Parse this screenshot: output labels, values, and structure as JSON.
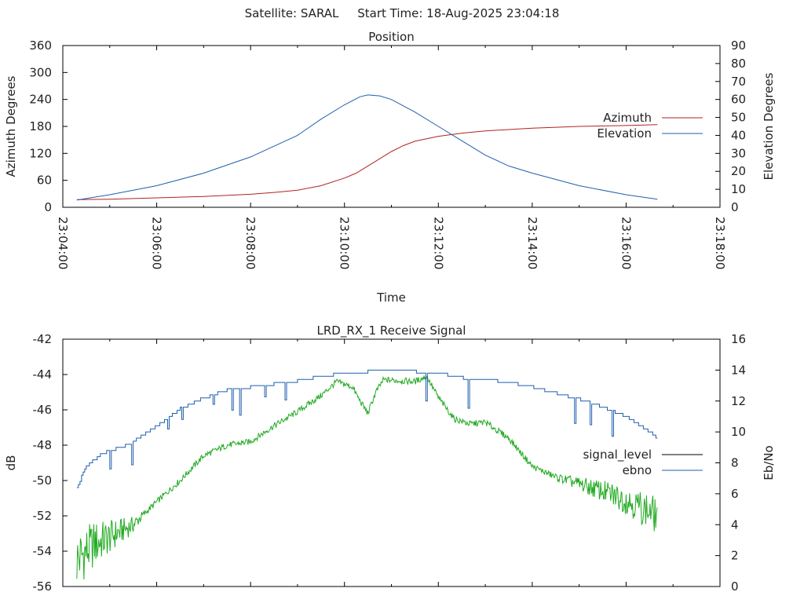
{
  "window": {
    "satellite_label": "Satellite: SARAL",
    "start_time_label": "Start Time: 18-Aug-2025 23:04:18"
  },
  "chart_data": [
    {
      "type": "line",
      "title": "Position",
      "xlabel": "Time",
      "ylabel": "Azimuth Degrees",
      "y2label": "Elevation Degrees",
      "xlim": [
        "23:04:00",
        "23:18:00"
      ],
      "x_ticks": [
        "23:04:00",
        "23:06:00",
        "23:08:00",
        "23:10:00",
        "23:12:00",
        "23:14:00",
        "23:16:00",
        "23:18:00"
      ],
      "ylim": [
        0,
        360
      ],
      "y_ticks": [
        "0",
        "60",
        "120",
        "180",
        "240",
        "300",
        "360"
      ],
      "y2lim": [
        0,
        90
      ],
      "y2_ticks": [
        "0",
        "10",
        "20",
        "30",
        "40",
        "50",
        "60",
        "70",
        "80",
        "90"
      ],
      "legend_position": "right",
      "series": [
        {
          "name": "Azimuth",
          "axis": "left",
          "color": "#b22222",
          "points": [
            [
              "23:04:18",
              17
            ],
            [
              "23:05:00",
              18
            ],
            [
              "23:06:00",
              21
            ],
            [
              "23:07:00",
              24
            ],
            [
              "23:08:00",
              29
            ],
            [
              "23:08:30",
              33
            ],
            [
              "23:09:00",
              38
            ],
            [
              "23:09:30",
              48
            ],
            [
              "23:10:00",
              65
            ],
            [
              "23:10:15",
              76
            ],
            [
              "23:10:30",
              92
            ],
            [
              "23:10:45",
              108
            ],
            [
              "23:11:00",
              124
            ],
            [
              "23:11:15",
              137
            ],
            [
              "23:11:30",
              147
            ],
            [
              "23:12:00",
              158
            ],
            [
              "23:12:30",
              165
            ],
            [
              "23:13:00",
              170
            ],
            [
              "23:14:00",
              176
            ],
            [
              "23:15:00",
              180
            ],
            [
              "23:16:00",
              182
            ],
            [
              "23:16:40",
              184
            ]
          ]
        },
        {
          "name": "Elevation",
          "axis": "right",
          "color": "#1f5fae",
          "points": [
            [
              "23:04:18",
              4
            ],
            [
              "23:05:00",
              7
            ],
            [
              "23:06:00",
              12
            ],
            [
              "23:07:00",
              19
            ],
            [
              "23:08:00",
              28
            ],
            [
              "23:09:00",
              40
            ],
            [
              "23:09:30",
              49
            ],
            [
              "23:10:00",
              57
            ],
            [
              "23:10:20",
              61.5
            ],
            [
              "23:10:30",
              62.5
            ],
            [
              "23:10:45",
              62
            ],
            [
              "23:11:00",
              60
            ],
            [
              "23:11:30",
              53
            ],
            [
              "23:12:00",
              45
            ],
            [
              "23:12:30",
              37
            ],
            [
              "23:13:00",
              29
            ],
            [
              "23:13:30",
              23
            ],
            [
              "23:14:00",
              19
            ],
            [
              "23:15:00",
              12
            ],
            [
              "23:16:00",
              7
            ],
            [
              "23:16:40",
              4.5
            ]
          ]
        }
      ]
    },
    {
      "type": "line",
      "title": "LRD_RX_1 Receive Signal",
      "ylabel": "dB",
      "y2label": "Eb/No",
      "xlim": [
        "23:04:00",
        "23:18:00"
      ],
      "ylim": [
        -56,
        -42
      ],
      "y_ticks": [
        "-56",
        "-54",
        "-52",
        "-50",
        "-48",
        "-46",
        "-44",
        "-42"
      ],
      "y2lim": [
        0,
        16
      ],
      "y2_ticks": [
        "0",
        "2",
        "4",
        "6",
        "8",
        "10",
        "12",
        "14",
        "16"
      ],
      "legend_position": "right",
      "series": [
        {
          "name": "signal_level",
          "axis": "left",
          "color": "#000000",
          "line_color": "#22aa22",
          "points": [
            [
              "23:04:18",
              -54.5
            ],
            [
              "23:04:40",
              -53.6
            ],
            [
              "23:05:00",
              -53.2
            ],
            [
              "23:05:30",
              -52.5
            ],
            [
              "23:06:00",
              -51.2
            ],
            [
              "23:06:30",
              -50.0
            ],
            [
              "23:07:00",
              -48.6
            ],
            [
              "23:07:30",
              -48.0
            ],
            [
              "23:08:00",
              -47.8
            ],
            [
              "23:08:30",
              -46.9
            ],
            [
              "23:09:00",
              -46.1
            ],
            [
              "23:09:30",
              -45.2
            ],
            [
              "23:09:50",
              -44.4
            ],
            [
              "23:10:10",
              -44.7
            ],
            [
              "23:10:20",
              -45.5
            ],
            [
              "23:10:30",
              -46.2
            ],
            [
              "23:10:40",
              -45.0
            ],
            [
              "23:10:50",
              -44.3
            ],
            [
              "23:11:30",
              -44.4
            ],
            [
              "23:11:45",
              -44.1
            ],
            [
              "23:12:00",
              -45.3
            ],
            [
              "23:12:20",
              -46.5
            ],
            [
              "23:12:40",
              -46.8
            ],
            [
              "23:13:00",
              -46.7
            ],
            [
              "23:13:30",
              -47.6
            ],
            [
              "23:14:00",
              -49.2
            ],
            [
              "23:14:30",
              -49.8
            ],
            [
              "23:15:00",
              -50.2
            ],
            [
              "23:15:30",
              -50.6
            ],
            [
              "23:16:00",
              -51.1
            ],
            [
              "23:16:40",
              -52.0
            ]
          ]
        },
        {
          "name": "ebno",
          "axis": "right",
          "color": "#1f5fae",
          "points": [
            [
              "23:04:18",
              6.4
            ],
            [
              "23:04:30",
              7.8
            ],
            [
              "23:04:50",
              8.6
            ],
            [
              "23:05:20",
              9.1
            ],
            [
              "23:06:00",
              10.4
            ],
            [
              "23:06:30",
              11.5
            ],
            [
              "23:07:00",
              12.2
            ],
            [
              "23:07:30",
              12.7
            ],
            [
              "23:08:00",
              12.9
            ],
            [
              "23:08:30",
              13.1
            ],
            [
              "23:09:00",
              13.3
            ],
            [
              "23:09:30",
              13.6
            ],
            [
              "23:10:00",
              13.8
            ],
            [
              "23:10:30",
              13.9
            ],
            [
              "23:11:00",
              13.9
            ],
            [
              "23:11:30",
              13.9
            ],
            [
              "23:12:00",
              13.8
            ],
            [
              "23:12:30",
              13.5
            ],
            [
              "23:13:00",
              13.4
            ],
            [
              "23:13:30",
              13.2
            ],
            [
              "23:14:00",
              12.9
            ],
            [
              "23:14:30",
              12.5
            ],
            [
              "23:15:00",
              12.1
            ],
            [
              "23:15:30",
              11.6
            ],
            [
              "23:16:00",
              11.0
            ],
            [
              "23:16:30",
              10.0
            ],
            [
              "23:16:40",
              9.5
            ]
          ]
        }
      ]
    }
  ]
}
